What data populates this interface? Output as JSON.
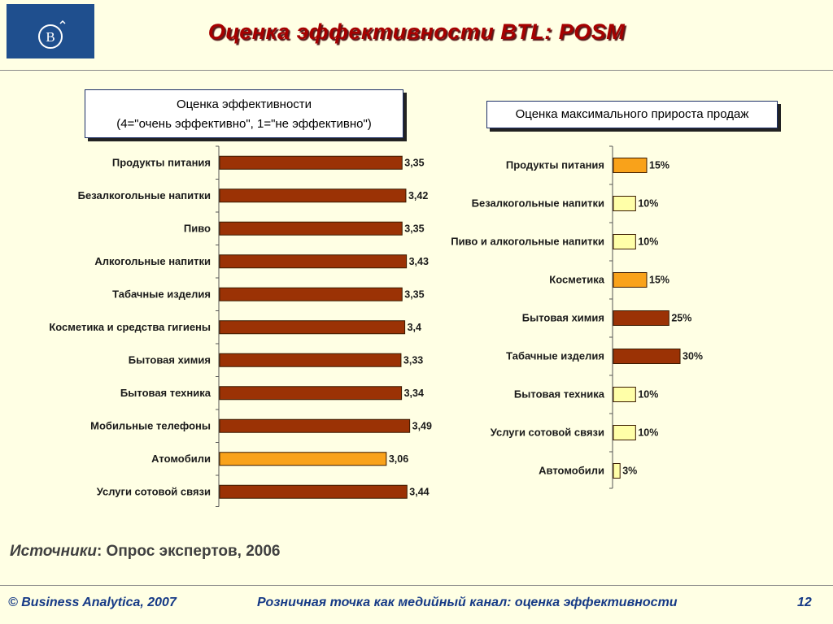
{
  "header": {
    "logo_text": "B",
    "title": "Оценка эффективности BTL: POSM"
  },
  "colors": {
    "bar_dark": "#9b3205",
    "bar_orange": "#f9a21a",
    "bar_light": "#ffffa8",
    "bar_border": "#3a1a00"
  },
  "chart_data": [
    {
      "type": "bar",
      "orientation": "horizontal",
      "title": "Оценка эффективности (4=\"очень эффективно\", 1=\"не эффективно\")",
      "title_line1": "Оценка эффективности",
      "title_line2": "(4=\"очень эффективно\", 1=\"не эффективно\")",
      "categories": [
        "Продукты питания",
        "Безалкогольные напитки",
        "Пиво",
        "Алкогольные напитки",
        "Табачные изделия",
        "Косметика и средства гигиены",
        "Бытовая химия",
        "Бытовая техника",
        "Мобильные телефоны",
        "Атомобили",
        "Услуги сотовой связи"
      ],
      "values": [
        3.35,
        3.42,
        3.35,
        3.43,
        3.35,
        3.4,
        3.33,
        3.34,
        3.49,
        3.06,
        3.44
      ],
      "value_labels": [
        "3,35",
        "3,42",
        "3,35",
        "3,43",
        "3,35",
        "3,4",
        "3,33",
        "3,34",
        "3,49",
        "3,06",
        "3,44"
      ],
      "bar_colors": [
        "dark",
        "dark",
        "dark",
        "dark",
        "dark",
        "dark",
        "dark",
        "dark",
        "dark",
        "orange",
        "dark"
      ],
      "xlim": [
        0,
        3.6
      ]
    },
    {
      "type": "bar",
      "orientation": "horizontal",
      "title": "Оценка максимального прироста продаж",
      "categories": [
        "Продукты питания",
        "Безалкогольные напитки",
        "Пиво и алкогольные напитки",
        "Косметика",
        "Бытовая химия",
        "Табачные изделия",
        "Бытовая техника",
        "Услуги сотовой связи",
        "Автомобили"
      ],
      "values": [
        15,
        10,
        10,
        15,
        25,
        30,
        10,
        10,
        3
      ],
      "value_labels": [
        "15%",
        "10%",
        "10%",
        "15%",
        "25%",
        "30%",
        "10%",
        "10%",
        "3%"
      ],
      "bar_colors": [
        "orange",
        "light",
        "light",
        "orange",
        "dark",
        "dark",
        "light",
        "light",
        "light"
      ],
      "xlim": [
        0,
        30
      ]
    }
  ],
  "source": {
    "label": "Источники",
    "text": ": Опрос экспертов, 2006"
  },
  "footer": {
    "copyright": "© Business Analytica, 2007",
    "subtitle": "Розничная точка как медийный канал: оценка эффективности",
    "page_number": "12"
  }
}
